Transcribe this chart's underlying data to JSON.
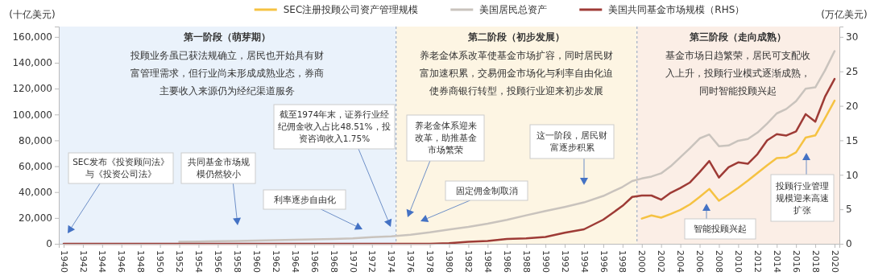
{
  "chart_data": {
    "type": "line",
    "ylabel": "(十亿美元)",
    "y2label": "(万亿美元)",
    "xlim": [
      1939.5,
      2020.5
    ],
    "xticks": [
      1940,
      1942,
      1944,
      1946,
      1948,
      1950,
      1952,
      1954,
      1956,
      1958,
      1960,
      1962,
      1964,
      1966,
      1968,
      1970,
      1972,
      1974,
      1976,
      1978,
      1980,
      1982,
      1984,
      1986,
      1988,
      1990,
      1992,
      1994,
      1996,
      1998,
      2000,
      2002,
      2004,
      2006,
      2008,
      2010,
      2012,
      2014,
      2016,
      2018,
      2020
    ],
    "ylim": [
      0,
      168000
    ],
    "yticks": [
      0,
      {
        "value": 20000,
        "label": "20,000"
      },
      {
        "value": 40000,
        "label": "40,000"
      },
      {
        "value": 60000,
        "label": "60,000"
      },
      {
        "value": 80000,
        "label": "80,000"
      },
      {
        "value": 100000,
        "label": "100,000"
      },
      {
        "value": 120000,
        "label": "120,000"
      },
      {
        "value": 140000,
        "label": "140,000"
      },
      {
        "value": 160000,
        "label": "160,000"
      }
    ],
    "y2lim": [
      0,
      31.5
    ],
    "y2ticks": [
      0,
      5,
      10,
      15,
      20,
      25,
      30
    ],
    "legend": "top",
    "grid": false,
    "series": [
      {
        "name": "SEC注册投顾公司资产管理规模",
        "color": "#f5c242",
        "x": [
          2000,
          2001,
          2002,
          2003,
          2004,
          2005,
          2006,
          2007,
          2008,
          2009,
          2010,
          2011,
          2012,
          2013,
          2014,
          2015,
          2016,
          2017,
          2018,
          2019,
          2020
        ],
        "values": [
          19500,
          21900,
          20200,
          23100,
          26200,
          30500,
          36200,
          42400,
          33300,
          38100,
          43300,
          48800,
          54800,
          60700,
          66200,
          66700,
          70700,
          82100,
          83800,
          97000,
          110700
        ]
      },
      {
        "name": "美国居民总资产",
        "color": "#c9c3bd",
        "x": [
          1952,
          1954,
          1956,
          1958,
          1960,
          1962,
          1964,
          1966,
          1968,
          1970,
          1972,
          1974,
          1976,
          1978,
          1980,
          1982,
          1984,
          1986,
          1988,
          1990,
          1992,
          1994,
          1996,
          1998,
          1999,
          2000,
          2001,
          2002,
          2003,
          2004,
          2005,
          2006,
          2007,
          2008,
          2009,
          2010,
          2011,
          2012,
          2013,
          2014,
          2015,
          2016,
          2017,
          2018,
          2019,
          2020
        ],
        "values": [
          1500,
          1700,
          2000,
          2200,
          2500,
          2800,
          3100,
          3400,
          3800,
          4200,
          5200,
          5800,
          7000,
          8800,
          11000,
          13000,
          15500,
          18500,
          22000,
          25300,
          28500,
          32000,
          37000,
          44000,
          48500,
          50500,
          52000,
          54500,
          60000,
          67000,
          74000,
          81500,
          84500,
          75500,
          76000,
          79700,
          81000,
          86000,
          93000,
          100800,
          104300,
          110300,
          120000,
          121000,
          134000,
          149000
        ]
      },
      {
        "name": "美国共同基金市场规模（RHS）",
        "color": "#9e3b36",
        "axis": "y2",
        "x": [
          1940,
          1942,
          1944,
          1946,
          1948,
          1950,
          1952,
          1954,
          1956,
          1958,
          1960,
          1962,
          1964,
          1966,
          1968,
          1970,
          1972,
          1974,
          1976,
          1978,
          1980,
          1982,
          1984,
          1986,
          1988,
          1990,
          1992,
          1994,
          1996,
          1998,
          1999,
          2000,
          2001,
          2002,
          2003,
          2004,
          2005,
          2006,
          2007,
          2008,
          2009,
          2010,
          2011,
          2012,
          2013,
          2014,
          2015,
          2016,
          2017,
          2018,
          2019,
          2020
        ],
        "values": [
          0,
          0,
          0,
          0,
          0,
          0,
          0,
          0,
          0,
          0,
          0,
          0,
          0,
          0,
          0,
          0,
          0,
          0,
          0,
          0,
          0.1,
          0.3,
          0.4,
          0.7,
          0.8,
          1.0,
          1.6,
          2.1,
          3.5,
          5.5,
          6.8,
          7.0,
          7.0,
          6.4,
          7.4,
          8.1,
          8.9,
          10.4,
          12.0,
          9.6,
          11.1,
          11.8,
          11.6,
          13.0,
          15.0,
          15.9,
          15.7,
          16.3,
          18.8,
          17.7,
          21.3,
          23.9
        ]
      }
    ],
    "bands": [
      {
        "axis": "x",
        "from": 1939.5,
        "to": 1974.5,
        "label": "第一阶段（萌芽期）",
        "color": "#eaf2fb"
      },
      {
        "axis": "x",
        "from": 1974.5,
        "to": 1999.5,
        "label": "第二阶段（初步发展）",
        "color": "#fdf5e3"
      },
      {
        "axis": "x",
        "from": 1999.5,
        "to": 2020.5,
        "label": "第三阶段（走向成熟）",
        "color": "#fbeee6"
      }
    ],
    "ref_lines": [
      {
        "axis": "x",
        "value": 1974.5,
        "color": "#8fa3c0",
        "line_style": "dashed"
      },
      {
        "axis": "x",
        "value": 1999.5,
        "color": "#8fa3c0",
        "line_style": "dashed"
      }
    ],
    "annotations": [
      "投顾业务虽已获法规确立，居民也开始具有财富管理需求，但行业尚未形成成熟业态，券商主要收入来源仍为经纪渠道服务",
      "养老金体系改革使基金市场扩容，同时居民财富加速积累，交易佣金市场化与利率自由化迫使券商银行转型，投顾行业迎来初步发展",
      "基金市场日趋繁荣，居民可支配收入上升，投顾行业模式逐渐成熟，同时智能投顾兴起",
      "SEC发布《投资顾问法》与《投资公司法》",
      "共同基金市场规模仍然较小",
      "利率逐步自由化",
      "截至1974年末，证券行业经纪佣金收入占比48.51%，投资咨询收入1.75%",
      "养老金体系迎来改革，助推基金市场繁荣",
      "固定佣金制取消",
      "这一阶段，居民财富逐步积累",
      "智能投顾兴起",
      "投顾行业管理规模迎来高速扩张"
    ]
  }
}
